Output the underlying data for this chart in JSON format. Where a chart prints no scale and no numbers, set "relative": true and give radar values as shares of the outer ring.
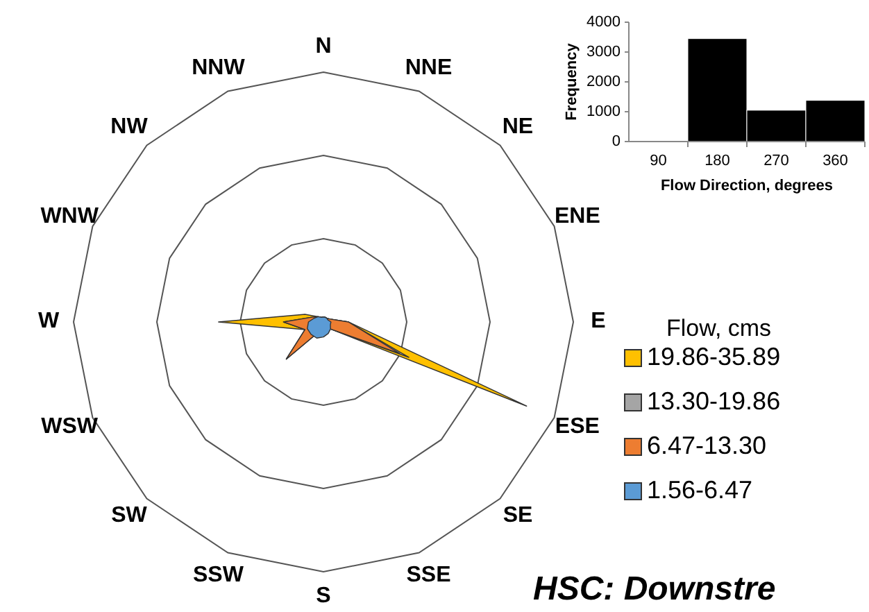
{
  "chart_data": [
    {
      "type": "radar",
      "relative": true,
      "grid": true,
      "legend": "right",
      "legend_title": "Flow, cms",
      "annotations": [
        "HSC: Downstre"
      ],
      "categories": [
        "N",
        "NNE",
        "NE",
        "ENE",
        "E",
        "ESE",
        "SE",
        "SSE",
        "S",
        "SSW",
        "SW",
        "WSW",
        "W",
        "WNW",
        "NW",
        "NNW"
      ],
      "series": [
        {
          "name": "19.86-35.89",
          "color": "#ffc000",
          "values": [
            0.02,
            0.02,
            0.02,
            0.03,
            0.1,
            0.88,
            0.04,
            0.03,
            0.03,
            0.04,
            0.21,
            0.08,
            0.42,
            0.08,
            0.03,
            0.02
          ]
        },
        {
          "name": "13.30-19.86",
          "color": "#a5a5a5",
          "values": [
            0.02,
            0.02,
            0.02,
            0.03,
            0.1,
            0.37,
            0.04,
            0.03,
            0.03,
            0.04,
            0.21,
            0.08,
            0.16,
            0.05,
            0.03,
            0.02
          ]
        },
        {
          "name": "6.47-13.30",
          "color": "#ed7d31",
          "values": [
            0.02,
            0.02,
            0.02,
            0.03,
            0.1,
            0.33,
            0.04,
            0.03,
            0.03,
            0.04,
            0.21,
            0.08,
            0.16,
            0.05,
            0.03,
            0.02
          ]
        },
        {
          "name": "1.56-6.47",
          "color": "#5b9bd5",
          "values": [
            0.02,
            0.02,
            0.02,
            0.02,
            0.03,
            0.03,
            0.04,
            0.05,
            0.06,
            0.07,
            0.07,
            0.07,
            0.06,
            0.04,
            0.03,
            0.02
          ]
        }
      ]
    },
    {
      "type": "bar",
      "xlabel": "Flow Direction, degrees",
      "ylabel": "Frequency",
      "categories": [
        "90",
        "180",
        "270",
        "360"
      ],
      "values": [
        0,
        3450,
        1050,
        1380
      ],
      "color": "#000000",
      "ylim": [
        0,
        4000
      ],
      "yticks": [
        0,
        1000,
        2000,
        3000,
        4000
      ]
    }
  ]
}
